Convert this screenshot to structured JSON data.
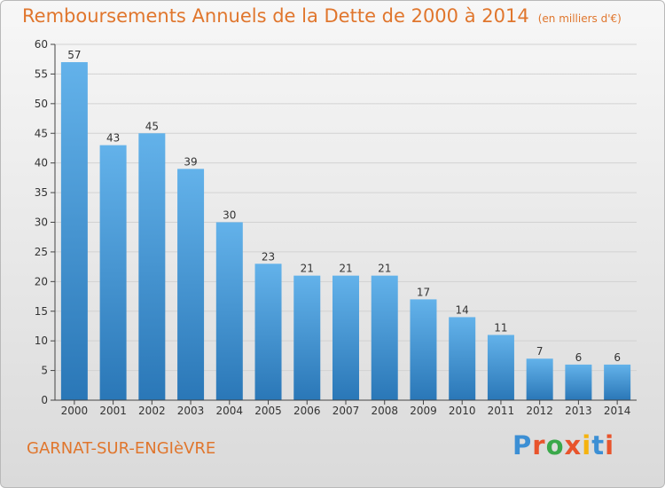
{
  "title": "Remboursements Annuels de la Dette de 2000 à 2014",
  "unit_note": "(en milliers d'€)",
  "commune": "GARNAT-SUR-ENGIèVRE",
  "logo": {
    "letters": [
      "P",
      "r",
      "o",
      "x",
      "i",
      "t",
      "i"
    ],
    "colors": [
      "#3c8fd4",
      "#e8542c",
      "#3aa84a",
      "#e8542c",
      "#f5b30e",
      "#3c8fd4",
      "#e8542c"
    ]
  },
  "colors": {
    "bar_top": "#63b2ea",
    "bar_bottom": "#2a77b7",
    "title": "#e0762d"
  },
  "chart_data": {
    "type": "bar",
    "categories": [
      "2000",
      "2001",
      "2002",
      "2003",
      "2004",
      "2005",
      "2006",
      "2007",
      "2008",
      "2009",
      "2010",
      "2011",
      "2012",
      "2013",
      "2014"
    ],
    "values": [
      57,
      43,
      45,
      39,
      30,
      23,
      21,
      21,
      21,
      17,
      14,
      11,
      7,
      6,
      6
    ],
    "ylim": [
      0,
      60
    ],
    "yticks": [
      0,
      5,
      10,
      15,
      20,
      25,
      30,
      35,
      40,
      45,
      50,
      55,
      60
    ],
    "grid": true,
    "data_labels": true
  }
}
